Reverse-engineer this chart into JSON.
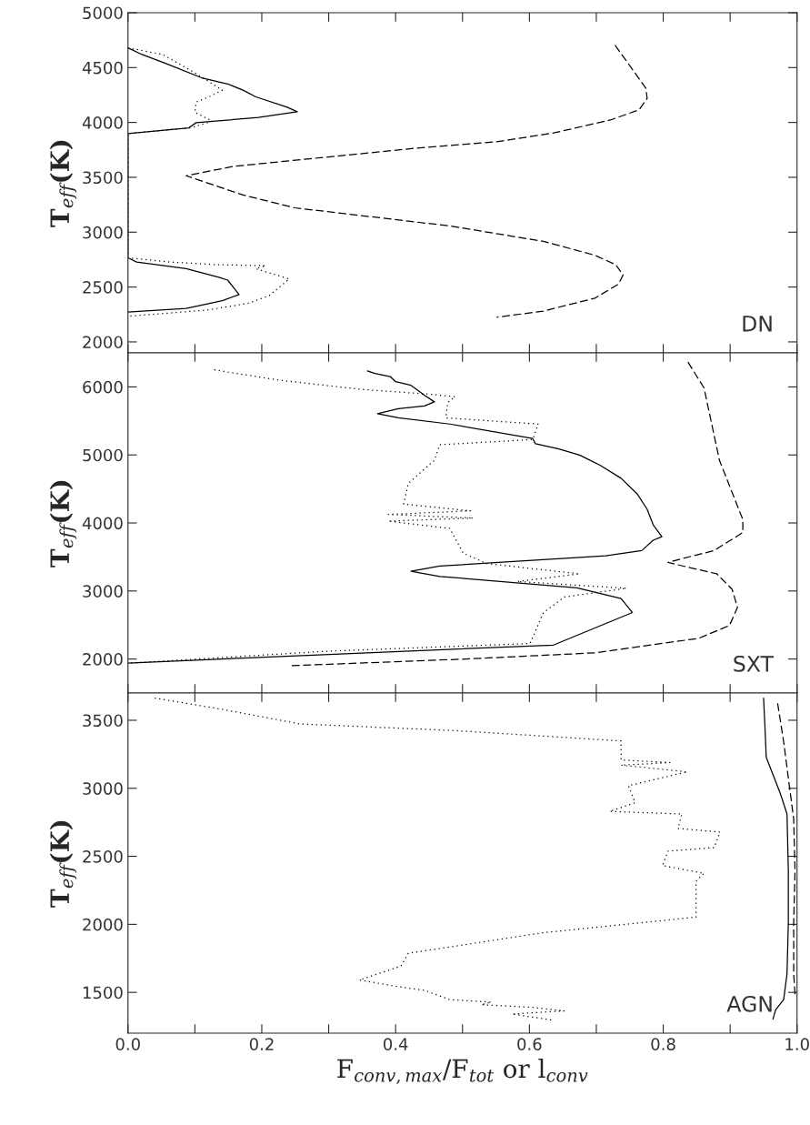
{
  "chart_data": [
    {
      "type": "line",
      "ylabel": "T$_{eff}$(K)",
      "annotations": [
        "DN"
      ],
      "xlim": [
        0,
        1
      ],
      "ylim": [
        1900,
        5000
      ],
      "tick_labels": "y",
      "xticks": [
        0,
        0.1,
        0.2,
        0.3,
        0.4,
        0.5,
        0.6,
        0.7,
        0.8,
        0.9,
        1
      ],
      "yticks": [
        2000,
        2500,
        3000,
        3500,
        4000,
        4500,
        5000
      ],
      "series": [
        {
          "color": "#000000",
          "line_style": "solid",
          "x": [
            0,
            0.021,
            0.056,
            0.11,
            0.149,
            0.172,
            0.191,
            0.238,
            0.253,
            0.195,
            0.102,
            0.091,
            0,
            0,
            0.013,
            0.087,
            0.137,
            0.149,
            0.166,
            0.141,
            0.087,
            0
          ],
          "values": [
            4680,
            4619,
            4539,
            4407,
            4351,
            4294,
            4233,
            4139,
            4097,
            4045,
            3998,
            3951,
            3899,
            2766,
            2728,
            2667,
            2587,
            2563,
            2432,
            2375,
            2305,
            2272
          ]
        },
        {
          "color": "#000000",
          "line_style": "dotted",
          "x": [
            0,
            0.052,
            0.102,
            0.141,
            0.121,
            0.102,
            0.1,
            0.126,
            0.094,
            0,
            0,
            0.063,
            0.133,
            0.206,
            0.191,
            0.241,
            0.211,
            0.18,
            0.118,
            0
          ],
          "values": [
            4680,
            4619,
            4445,
            4294,
            4233,
            4186,
            4092,
            4012,
            3951,
            3899,
            2766,
            2728,
            2704,
            2695,
            2667,
            2573,
            2422,
            2352,
            2290,
            2234
          ]
        },
        {
          "color": "#000000",
          "line_style": "dashed",
          "x": [
            0.728,
            0.774,
            0.776,
            0.764,
            0.721,
            0.636,
            0.551,
            0.427,
            0.272,
            0.156,
            0.087,
            0.172,
            0.249,
            0.481,
            0.621,
            0.698,
            0.729,
            0.74,
            0.733,
            0.698,
            0.621,
            0.551
          ],
          "values": [
            4704,
            4313,
            4219,
            4116,
            4022,
            3904,
            3824,
            3763,
            3669,
            3598,
            3514,
            3339,
            3222,
            3057,
            2916,
            2789,
            2704,
            2610,
            2526,
            2399,
            2281,
            2225
          ]
        }
      ]
    },
    {
      "type": "line",
      "ylabel": "T$_{eff}$(K)",
      "annotations": [
        "SXT"
      ],
      "xlim": [
        0,
        1
      ],
      "ylim": [
        1500,
        6500
      ],
      "tick_labels": "y",
      "xticks": [
        0,
        0.1,
        0.2,
        0.3,
        0.4,
        0.5,
        0.6,
        0.7,
        0.8,
        0.9,
        1
      ],
      "yticks": [
        2000,
        3000,
        4000,
        5000,
        6000
      ],
      "series": [
        {
          "color": "#000000",
          "line_style": "solid",
          "x": [
            0.358,
            0.369,
            0.392,
            0.4,
            0.423,
            0.444,
            0.458,
            0.443,
            0.404,
            0.373,
            0.404,
            0.481,
            0.605,
            0.609,
            0.644,
            0.675,
            0.706,
            0.737,
            0.761,
            0.776,
            0.785,
            0.798,
            0.785,
            0.768,
            0.714,
            0.466,
            0.423,
            0.466,
            0.671,
            0.737,
            0.754,
            0.636,
            0.172,
            0
          ],
          "values": [
            6235,
            6197,
            6152,
            6076,
            6023,
            5871,
            5780,
            5719,
            5681,
            5605,
            5545,
            5454,
            5241,
            5165,
            5089,
            4998,
            4846,
            4657,
            4429,
            4201,
            3973,
            3799,
            3746,
            3594,
            3518,
            3366,
            3290,
            3214,
            3047,
            2888,
            2683,
            2205,
            2015,
            1939
          ]
        },
        {
          "color": "#000000",
          "line_style": "dotted",
          "x": [
            0.129,
            0.226,
            0.35,
            0.45,
            0.489,
            0.478,
            0.475,
            0.613,
            0.605,
            0.466,
            0.458,
            0.419,
            0.412,
            0.512,
            0.389,
            0.516,
            0.389,
            0.481,
            0.501,
            0.536,
            0.675,
            0.582,
            0.745,
            0.652,
            0.621,
            0.601,
            0.296,
            0
          ],
          "values": [
            6250,
            6099,
            5962,
            5894,
            5856,
            5772,
            5545,
            5454,
            5226,
            5150,
            4922,
            4581,
            4277,
            4178,
            4125,
            4072,
            4027,
            3920,
            3556,
            3404,
            3252,
            3139,
            3040,
            2911,
            2683,
            2228,
            2114,
            1939
          ]
        },
        {
          "color": "#000000",
          "line_style": "dashed",
          "x": [
            0.837,
            0.861,
            0.884,
            0.919,
            0.919,
            0.876,
            0.83,
            0.807,
            0.88,
            0.903,
            0.911,
            0.899,
            0.853,
            0.698,
            0.505,
            0.241
          ],
          "values": [
            6364,
            5985,
            4922,
            4049,
            3860,
            3594,
            3480,
            3419,
            3252,
            3025,
            2759,
            2493,
            2304,
            2091,
            2000,
            1901
          ]
        }
      ]
    },
    {
      "type": "line",
      "ylabel": "T$_{eff}$(K)",
      "xlabel": "F$_{conv,max}$/F$_{tot}$ or l$_{conv}$",
      "annotations": [
        "AGN"
      ],
      "xlim": [
        0,
        1
      ],
      "ylim": [
        1200,
        3700
      ],
      "xticks": [
        {
          "value": 0,
          "label": "0.0"
        },
        {
          "value": 0.1,
          "label": null
        },
        0.2,
        {
          "value": 0.3,
          "label": null
        },
        0.4,
        {
          "value": 0.5,
          "label": null
        },
        0.6,
        {
          "value": 0.7,
          "label": null
        },
        0.8,
        {
          "value": 0.9,
          "label": null
        },
        {
          "value": 1,
          "label": "1.0"
        }
      ],
      "yticks": [
        1500,
        2000,
        2500,
        3000,
        3500
      ],
      "series": [
        {
          "color": "#000000",
          "line_style": "dotted",
          "x": [
            0.04,
            0.133,
            0.257,
            0.489,
            0.737,
            0.737,
            0.81,
            0.737,
            0.836,
            0.748,
            0.758,
            0.72,
            0.828,
            0.822,
            0.885,
            0.876,
            0.807,
            0.799,
            0.861,
            0.849,
            0.849,
            0.621,
            0.419,
            0.408,
            0.346,
            0.404,
            0.443,
            0.481,
            0.543,
            0.528,
            0.605,
            0.652,
            0.574,
            0.636
          ],
          "values": [
            3663,
            3587,
            3473,
            3424,
            3348,
            3208,
            3189,
            3170,
            3121,
            3019,
            2894,
            2830,
            2811,
            2705,
            2678,
            2564,
            2538,
            2432,
            2375,
            2318,
            2053,
            1939,
            1788,
            1693,
            1591,
            1542,
            1515,
            1447,
            1428,
            1409,
            1390,
            1364,
            1341,
            1295
          ]
        },
        {
          "color": "#000000",
          "line_style": "solid",
          "x": [
            0.95,
            0.952,
            0.954,
            0.975,
            0.985,
            0.987,
            0.987,
            0.985,
            0.98,
            0.968,
            0.964
          ],
          "values": [
            3663,
            3455,
            3227,
            2962,
            2811,
            2394,
            2015,
            1636,
            1447,
            1371,
            1303
          ]
        },
        {
          "color": "#000000",
          "line_style": "dashed",
          "x": [
            0.971,
            0.98,
            0.988,
            0.995,
            0.997,
            0.995,
            0.995,
            0.997
          ],
          "values": [
            3625,
            3341,
            3038,
            2773,
            2394,
            2015,
            1636,
            1485
          ]
        }
      ]
    }
  ]
}
